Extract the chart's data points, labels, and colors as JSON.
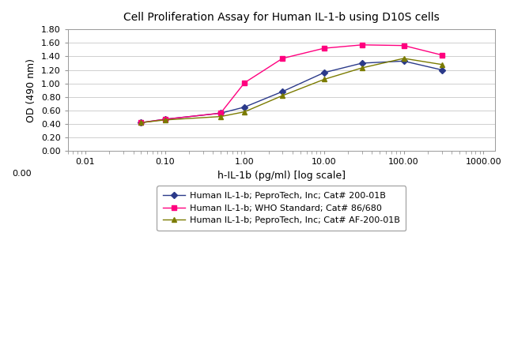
{
  "title": "Cell Proliferation Assay for Human IL-1-b using D10S cells",
  "xlabel": "h-IL-1b (pg/ml) [log scale]",
  "ylabel": "OD (490 nm)",
  "ylim": [
    0.0,
    1.8
  ],
  "yticks": [
    0.0,
    0.2,
    0.4,
    0.6,
    0.8,
    1.0,
    1.2,
    1.4,
    1.6,
    1.8
  ],
  "series": [
    {
      "label": "Human IL-1-b; PeproTech, Inc; Cat# 200-01B",
      "color": "#2B3A8A",
      "marker": "D",
      "markersize": 4,
      "x": [
        0.05,
        0.1,
        0.5,
        1.0,
        3.0,
        10.0,
        30.0,
        100.0,
        300.0
      ],
      "y": [
        0.42,
        0.47,
        0.56,
        0.65,
        0.88,
        1.16,
        1.3,
        1.33,
        1.2
      ]
    },
    {
      "label": "Human IL-1-b; WHO Standard; Cat# 86/680",
      "color": "#FF007F",
      "marker": "s",
      "markersize": 4,
      "x": [
        0.05,
        0.1,
        0.5,
        1.0,
        3.0,
        10.0,
        30.0,
        100.0,
        300.0
      ],
      "y": [
        0.42,
        0.47,
        0.56,
        1.01,
        1.37,
        1.52,
        1.57,
        1.56,
        1.42
      ]
    },
    {
      "label": "Human IL-1-b; PeproTech, Inc; Cat# AF-200-01B",
      "color": "#7B7B00",
      "marker": "^",
      "markersize": 4,
      "x": [
        0.05,
        0.1,
        0.5,
        1.0,
        3.0,
        10.0,
        30.0,
        100.0,
        300.0
      ],
      "y": [
        0.42,
        0.46,
        0.51,
        0.58,
        0.82,
        1.06,
        1.23,
        1.37,
        1.28
      ]
    }
  ],
  "xtick_positions": [
    0.01,
    0.1,
    1.0,
    10.0,
    100.0,
    1000.0
  ],
  "xtick_labels": [
    "0.01",
    "0.10",
    "1.00",
    "10.00",
    "100.00",
    "1000.00"
  ],
  "xlim": [
    0.006,
    1400
  ],
  "background_color": "#FFFFFF",
  "grid_color": "#C8C8C8",
  "title_fontsize": 10,
  "label_fontsize": 9,
  "tick_fontsize": 8,
  "legend_fontsize": 8
}
